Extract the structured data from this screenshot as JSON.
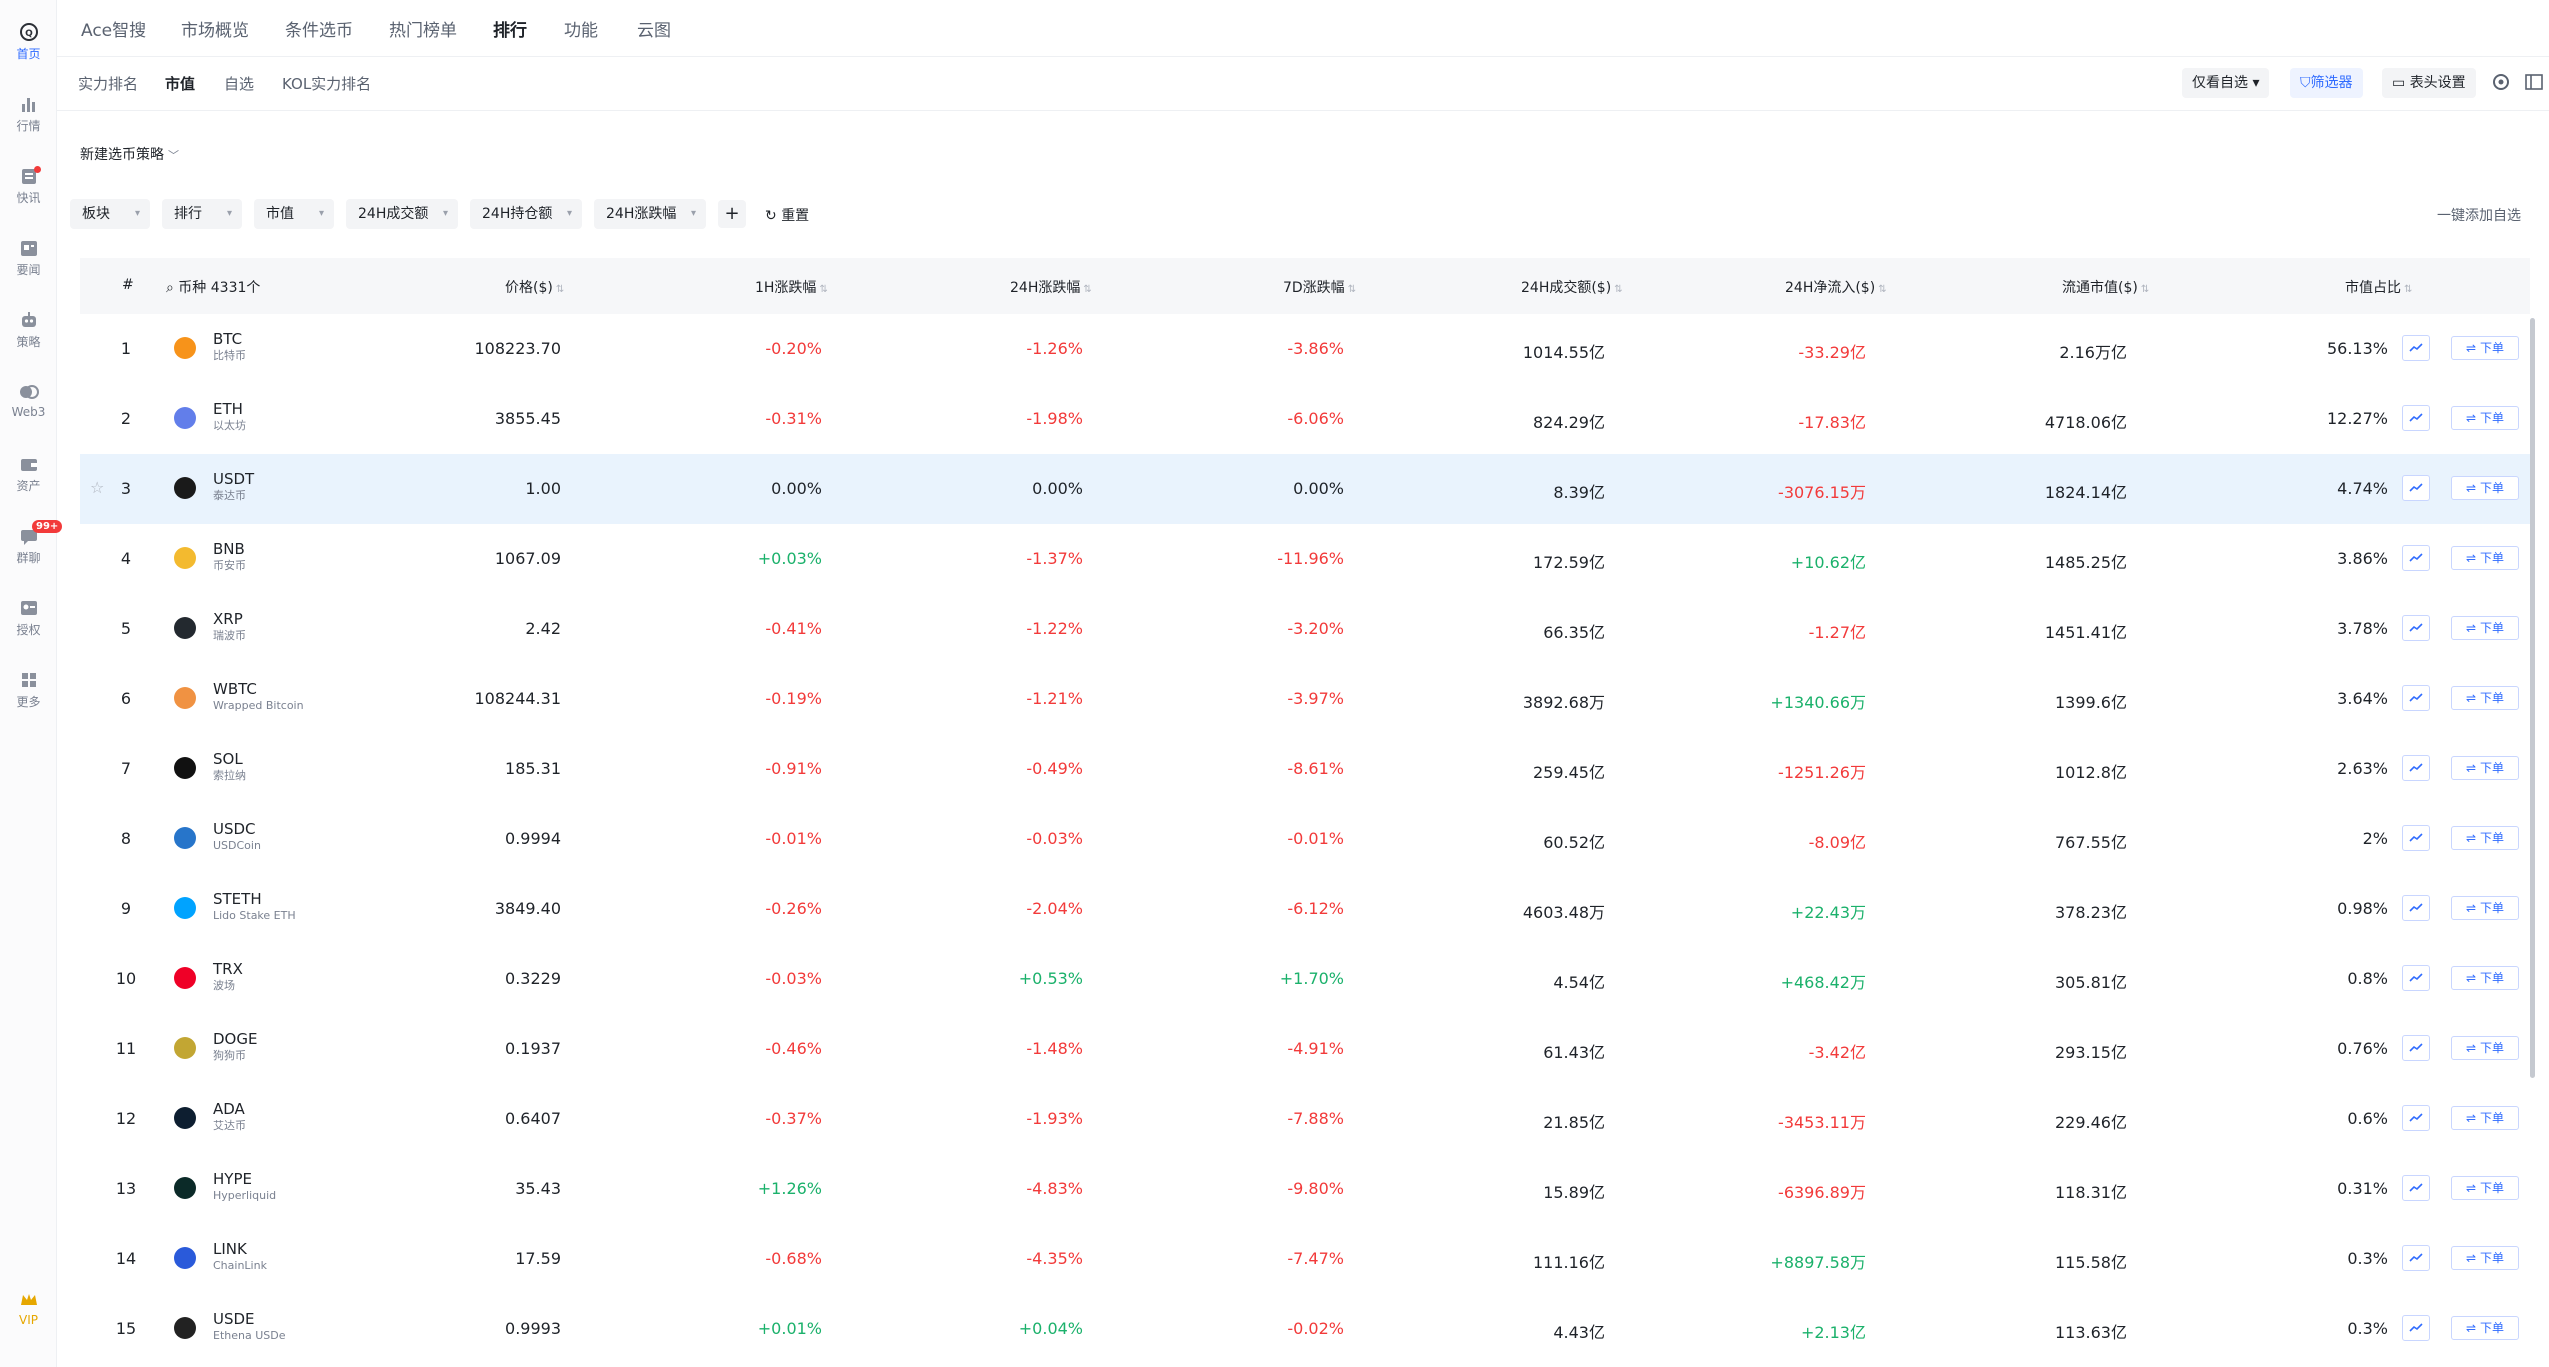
{
  "sidebar": {
    "items": [
      {
        "label": "首页",
        "icon": "home-icon",
        "active": true
      },
      {
        "label": "行情",
        "icon": "bar-chart-icon"
      },
      {
        "label": "快讯",
        "icon": "news-flash-icon",
        "dot": true
      },
      {
        "label": "要闻",
        "icon": "newspaper-icon"
      },
      {
        "label": "策略",
        "icon": "robot-icon"
      },
      {
        "label": "Web3",
        "icon": "web3-icon"
      },
      {
        "label": "资产",
        "icon": "wallet-icon"
      },
      {
        "label": "群聊",
        "icon": "chat-icon",
        "badge": "99+"
      },
      {
        "label": "授权",
        "icon": "authorize-icon"
      },
      {
        "label": "更多",
        "icon": "more-grid-icon"
      }
    ],
    "vip_label": "VIP"
  },
  "topnav": [
    "Ace智搜",
    "市场概览",
    "条件选币",
    "热门榜单",
    "排行",
    "功能",
    "云图"
  ],
  "subnav": {
    "tabs": [
      "实力排名",
      "市值",
      "自选",
      "KOL实力排名"
    ],
    "watch_only": "仅看自选",
    "filter": "筛选器",
    "header_settings": "表头设置"
  },
  "strategy_label": "新建选币策略",
  "filters": [
    "板块",
    "排行",
    "市值",
    "24H成交额",
    "24H持仓额",
    "24H涨跌幅"
  ],
  "reset_label": "重置",
  "one_click_label": "一键添加自选",
  "table": {
    "headers": {
      "rank": "#",
      "coin": "币种",
      "coin_count": "4331个",
      "price": "价格($)",
      "h1": "1H涨跌幅",
      "h24": "24H涨跌幅",
      "d7": "7D涨跌幅",
      "vol": "24H成交额($)",
      "inflow": "24H净流入($)",
      "mcap": "流通市值($)",
      "share": "市值占比"
    },
    "order_label": "下单",
    "rows": [
      {
        "rank": "1",
        "symbol": "BTC",
        "name": "比特币",
        "color": "#f7931a",
        "price": "108223.70",
        "h1": "-0.20%",
        "h24": "-1.26%",
        "d7": "-3.86%",
        "vol": "1014.55亿",
        "inflow": "-33.29亿",
        "mcap": "2.16万亿",
        "share": "56.13%"
      },
      {
        "rank": "2",
        "symbol": "ETH",
        "name": "以太坊",
        "color": "#627eea",
        "price": "3855.45",
        "h1": "-0.31%",
        "h24": "-1.98%",
        "d7": "-6.06%",
        "vol": "824.29亿",
        "inflow": "-17.83亿",
        "mcap": "4718.06亿",
        "share": "12.27%"
      },
      {
        "rank": "3",
        "symbol": "USDT",
        "name": "泰达币",
        "color": "#1a1a1a",
        "price": "1.00",
        "h1": "0.00%",
        "h24": "0.00%",
        "d7": "0.00%",
        "vol": "8.39亿",
        "inflow": "-3076.15万",
        "mcap": "1824.14亿",
        "share": "4.74%",
        "highlight": true
      },
      {
        "rank": "4",
        "symbol": "BNB",
        "name": "币安币",
        "color": "#f3ba2f",
        "price": "1067.09",
        "h1": "+0.03%",
        "h24": "-1.37%",
        "d7": "-11.96%",
        "vol": "172.59亿",
        "inflow": "+10.62亿",
        "mcap": "1485.25亿",
        "share": "3.86%"
      },
      {
        "rank": "5",
        "symbol": "XRP",
        "name": "瑞波币",
        "color": "#23292f",
        "price": "2.42",
        "h1": "-0.41%",
        "h24": "-1.22%",
        "d7": "-3.20%",
        "vol": "66.35亿",
        "inflow": "-1.27亿",
        "mcap": "1451.41亿",
        "share": "3.78%"
      },
      {
        "rank": "6",
        "symbol": "WBTC",
        "name": "Wrapped Bitcoin",
        "color": "#f09242",
        "price": "108244.31",
        "h1": "-0.19%",
        "h24": "-1.21%",
        "d7": "-3.97%",
        "vol": "3892.68万",
        "inflow": "+1340.66万",
        "mcap": "1399.6亿",
        "share": "3.64%"
      },
      {
        "rank": "7",
        "symbol": "SOL",
        "name": "索拉纳",
        "color": "#111111",
        "price": "185.31",
        "h1": "-0.91%",
        "h24": "-0.49%",
        "d7": "-8.61%",
        "vol": "259.45亿",
        "inflow": "-1251.26万",
        "mcap": "1012.8亿",
        "share": "2.63%"
      },
      {
        "rank": "8",
        "symbol": "USDC",
        "name": "USDCoin",
        "color": "#2775ca",
        "price": "0.9994",
        "h1": "-0.01%",
        "h24": "-0.03%",
        "d7": "-0.01%",
        "vol": "60.52亿",
        "inflow": "-8.09亿",
        "mcap": "767.55亿",
        "share": "2%"
      },
      {
        "rank": "9",
        "symbol": "STETH",
        "name": "Lido Stake ETH",
        "color": "#00a3ff",
        "price": "3849.40",
        "h1": "-0.26%",
        "h24": "-2.04%",
        "d7": "-6.12%",
        "vol": "4603.48万",
        "inflow": "+22.43万",
        "mcap": "378.23亿",
        "share": "0.98%"
      },
      {
        "rank": "10",
        "symbol": "TRX",
        "name": "波场",
        "color": "#ef0027",
        "price": "0.3229",
        "h1": "-0.03%",
        "h24": "+0.53%",
        "d7": "+1.70%",
        "vol": "4.54亿",
        "inflow": "+468.42万",
        "mcap": "305.81亿",
        "share": "0.8%"
      },
      {
        "rank": "11",
        "symbol": "DOGE",
        "name": "狗狗币",
        "color": "#c2a633",
        "price": "0.1937",
        "h1": "-0.46%",
        "h24": "-1.48%",
        "d7": "-4.91%",
        "vol": "61.43亿",
        "inflow": "-3.42亿",
        "mcap": "293.15亿",
        "share": "0.76%"
      },
      {
        "rank": "12",
        "symbol": "ADA",
        "name": "艾达币",
        "color": "#0d1e30",
        "price": "0.6407",
        "h1": "-0.37%",
        "h24": "-1.93%",
        "d7": "-7.88%",
        "vol": "21.85亿",
        "inflow": "-3453.11万",
        "mcap": "229.46亿",
        "share": "0.6%"
      },
      {
        "rank": "13",
        "symbol": "HYPE",
        "name": "Hyperliquid",
        "color": "#0b2a28",
        "price": "35.43",
        "h1": "+1.26%",
        "h24": "-4.83%",
        "d7": "-9.80%",
        "vol": "15.89亿",
        "inflow": "-6396.89万",
        "mcap": "118.31亿",
        "share": "0.31%"
      },
      {
        "rank": "14",
        "symbol": "LINK",
        "name": "ChainLink",
        "color": "#2a5ada",
        "price": "17.59",
        "h1": "-0.68%",
        "h24": "-4.35%",
        "d7": "-7.47%",
        "vol": "111.16亿",
        "inflow": "+8897.58万",
        "mcap": "115.58亿",
        "share": "0.3%"
      },
      {
        "rank": "15",
        "symbol": "USDE",
        "name": "Ethena USDe",
        "color": "#222222",
        "price": "0.9993",
        "h1": "+0.01%",
        "h24": "+0.04%",
        "d7": "-0.02%",
        "vol": "4.43亿",
        "inflow": "+2.13亿",
        "mcap": "113.63亿",
        "share": "0.3%"
      }
    ]
  },
  "colors": {
    "up": "#1bb16b",
    "down": "#f23a3a",
    "accent": "#2f6bff",
    "highlight_row": "#e9f3fd"
  }
}
